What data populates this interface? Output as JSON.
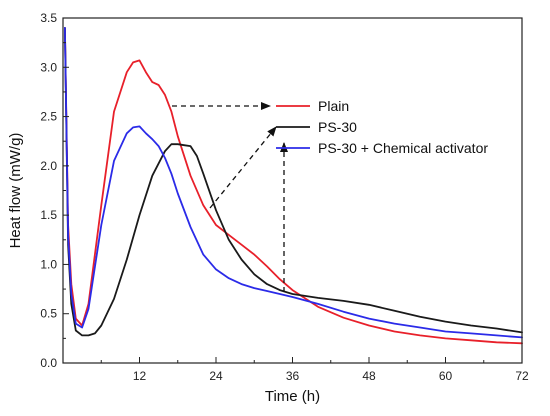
{
  "chart_data": {
    "type": "line",
    "title": "",
    "xlabel": "Time (h)",
    "ylabel": "Heat flow (mW/g)",
    "xlim": [
      0,
      72
    ],
    "ylim": [
      0,
      3.5
    ],
    "x_ticks": [
      12,
      24,
      36,
      48,
      60,
      72
    ],
    "y_ticks": [
      0.0,
      0.5,
      1.0,
      1.5,
      2.0,
      2.5,
      3.0,
      3.5
    ],
    "x_tick_labels": [
      "12",
      "24",
      "36",
      "48",
      "60",
      "72"
    ],
    "y_tick_labels": [
      "0.0",
      "0.5",
      "1.0",
      "1.5",
      "2.0",
      "2.5",
      "3.0",
      "3.5"
    ],
    "grid": false,
    "legend_position": "right-center",
    "series": [
      {
        "name": "Plain",
        "color": "#e8202a",
        "x": [
          0.3,
          0.8,
          1.3,
          2,
          3,
          4,
          6,
          8,
          10,
          11,
          12,
          13,
          14,
          15,
          16,
          17,
          18,
          20,
          22,
          24,
          26,
          28,
          30,
          32,
          34,
          36,
          40,
          44,
          48,
          52,
          56,
          60,
          64,
          68,
          72
        ],
        "y": [
          3.4,
          1.4,
          0.8,
          0.45,
          0.38,
          0.6,
          1.6,
          2.55,
          2.95,
          3.05,
          3.07,
          2.95,
          2.85,
          2.82,
          2.72,
          2.55,
          2.3,
          1.9,
          1.6,
          1.4,
          1.3,
          1.2,
          1.1,
          0.98,
          0.85,
          0.74,
          0.57,
          0.46,
          0.38,
          0.32,
          0.28,
          0.25,
          0.23,
          0.21,
          0.2
        ]
      },
      {
        "name": "PS-30",
        "color": "#1a1a1a",
        "x": [
          0.3,
          0.8,
          1.3,
          2,
          3,
          4,
          5,
          6,
          8,
          10,
          12,
          14,
          16,
          17,
          18,
          19,
          20,
          21,
          22,
          24,
          26,
          28,
          30,
          32,
          34,
          36,
          40,
          44,
          48,
          52,
          56,
          60,
          64,
          68,
          72
        ],
        "y": [
          3.4,
          1.2,
          0.6,
          0.33,
          0.28,
          0.28,
          0.3,
          0.38,
          0.65,
          1.05,
          1.5,
          1.9,
          2.15,
          2.22,
          2.22,
          2.21,
          2.2,
          2.1,
          1.92,
          1.55,
          1.25,
          1.05,
          0.9,
          0.8,
          0.74,
          0.7,
          0.66,
          0.63,
          0.59,
          0.53,
          0.47,
          0.42,
          0.38,
          0.35,
          0.31
        ]
      },
      {
        "name": "PS-30 + Chemical activator",
        "color": "#2b2be8",
        "x": [
          0.3,
          0.8,
          1.3,
          2,
          3,
          4,
          6,
          8,
          10,
          11,
          12,
          13,
          14,
          15,
          16,
          17,
          18,
          20,
          22,
          24,
          26,
          28,
          30,
          32,
          34,
          36,
          40,
          44,
          48,
          52,
          56,
          60,
          64,
          68,
          72
        ],
        "y": [
          3.4,
          1.3,
          0.7,
          0.4,
          0.36,
          0.55,
          1.4,
          2.05,
          2.33,
          2.39,
          2.4,
          2.33,
          2.27,
          2.2,
          2.08,
          1.92,
          1.72,
          1.38,
          1.1,
          0.95,
          0.86,
          0.8,
          0.76,
          0.73,
          0.7,
          0.67,
          0.6,
          0.52,
          0.45,
          0.4,
          0.36,
          0.32,
          0.3,
          0.28,
          0.26
        ]
      }
    ]
  }
}
